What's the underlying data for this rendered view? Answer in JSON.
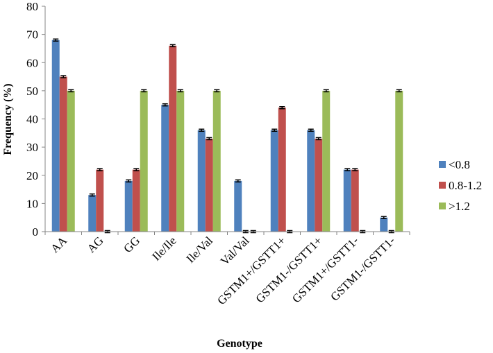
{
  "chart_data": {
    "type": "bar",
    "title": "",
    "xlabel": "Genotype",
    "ylabel": "Frequency (%)",
    "ylim": [
      0,
      80
    ],
    "yticks": [
      0,
      10,
      20,
      30,
      40,
      50,
      60,
      70,
      80
    ],
    "grid": false,
    "legend": "right",
    "categories": [
      "AA",
      "AG",
      "GG",
      "Ile/Ile",
      "Ile/Val",
      "Val/Val",
      "GSTM1+/GSTT1+",
      "GSTM1-/GSTT1+",
      "GSTM1+/GSTT1-",
      "GSTM1-/GSTT1-"
    ],
    "series": [
      {
        "name": "<0.8",
        "color": "#4f81bd",
        "values": [
          68,
          13,
          18,
          45,
          36,
          18,
          36,
          36,
          22,
          5
        ]
      },
      {
        "name": "0.8-1.2",
        "color": "#c0504d",
        "values": [
          55,
          22,
          22,
          66,
          33,
          0,
          44,
          33,
          22,
          0
        ]
      },
      {
        "name": ">1.2",
        "color": "#9bbb59",
        "values": [
          50,
          0,
          50,
          50,
          50,
          0,
          0,
          50,
          0,
          50
        ]
      }
    ]
  }
}
